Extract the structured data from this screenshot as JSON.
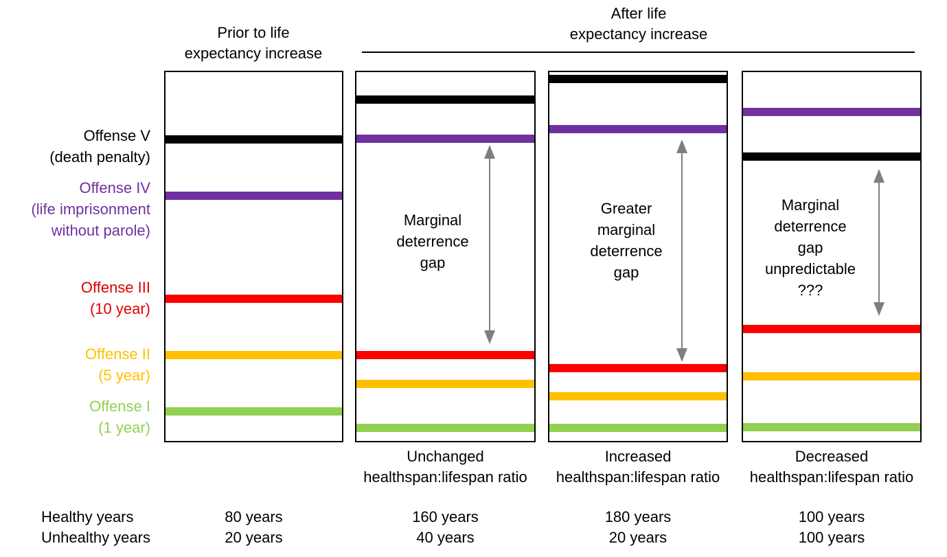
{
  "headers": {
    "prior": "Prior to life\nexpectancy increase",
    "after": "After life\nexpectancy increase"
  },
  "offenses": [
    {
      "label": "Offense V\n(death penalty)",
      "color": "#000000",
      "text_color": "#000000"
    },
    {
      "label": "Offense IV\n(life imprisonment\nwithout parole)",
      "color": "#7030A0",
      "text_color": "#7030A0"
    },
    {
      "label": "Offense III\n(10 year)",
      "color": "#FF0000",
      "text_color": "#E00000"
    },
    {
      "label": "Offense II\n(5 year)",
      "color": "#FFC000",
      "text_color": "#FFC000"
    },
    {
      "label": "Offense I\n(1 year)",
      "color": "#92D050",
      "text_color": "#92D050"
    }
  ],
  "panels": [
    {
      "caption": "",
      "gap_label": "",
      "healthy": "80 years",
      "unhealthy": "20 years"
    },
    {
      "caption": "Unchanged\nhealthspan:lifespan ratio",
      "gap_label": "Marginal\ndeterrence\ngap",
      "healthy": "160 years",
      "unhealthy": "40 years"
    },
    {
      "caption": "Increased\nhealthspan:lifespan ratio",
      "gap_label": "Greater\nmarginal\ndeterrence\ngap",
      "healthy": "180 years",
      "unhealthy": "20 years"
    },
    {
      "caption": "Decreased\nhealthspan:lifespan ratio",
      "gap_label": "Marginal\ndeterrence\ngap\nunpredictable\n???",
      "healthy": "100 years",
      "unhealthy": "100 years"
    }
  ],
  "rows": {
    "healthy_label": "Healthy years",
    "unhealthy_label": "Unhealthy years"
  },
  "arrow_color": "#7F7F7F"
}
